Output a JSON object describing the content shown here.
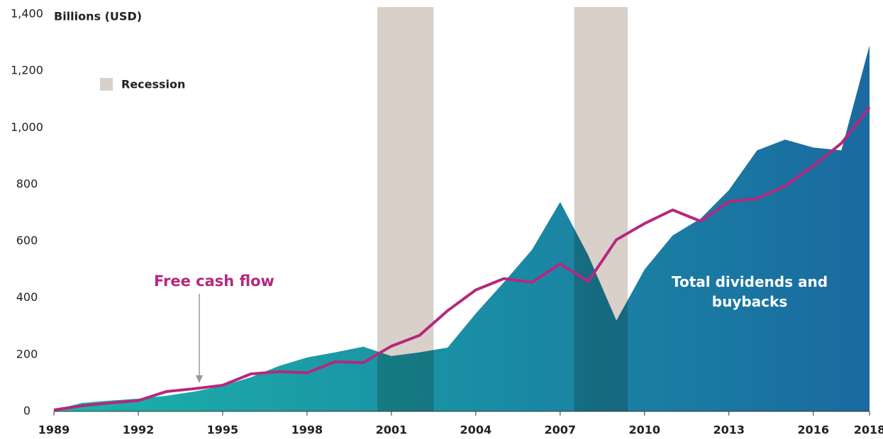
{
  "chart_data": {
    "type": "area-line",
    "y_axis_label": "Billions (USD)",
    "x": [
      1989,
      1990,
      1991,
      1992,
      1993,
      1994,
      1995,
      1996,
      1997,
      1998,
      1999,
      2000,
      2001,
      2002,
      2003,
      2004,
      2005,
      2006,
      2007,
      2008,
      2009,
      2010,
      2011,
      2012,
      2013,
      2014,
      2015,
      2016,
      2017,
      2018
    ],
    "series": [
      {
        "name": "Total dividends and buybacks",
        "kind": "area",
        "color": [
          "#1bb3a9",
          "#1a6aa0"
        ],
        "values": [
          5,
          30,
          38,
          45,
          55,
          70,
          90,
          120,
          160,
          190,
          208,
          228,
          195,
          208,
          225,
          345,
          455,
          570,
          738,
          550,
          320,
          500,
          620,
          680,
          780,
          920,
          958,
          930,
          920,
          1290
        ]
      },
      {
        "name": "Free cash flow",
        "kind": "line",
        "color": "#b5287e",
        "values": [
          5,
          20,
          30,
          38,
          70,
          80,
          92,
          132,
          140,
          136,
          175,
          172,
          230,
          268,
          355,
          428,
          468,
          455,
          520,
          458,
          605,
          662,
          710,
          670,
          740,
          750,
          795,
          865,
          945,
          1072
        ]
      }
    ],
    "recession_label": "Recession",
    "recession_color": "#d8d0c9",
    "recessions": [
      {
        "start": 2000.5,
        "end": 2002.5
      },
      {
        "start": 2007.5,
        "end": 2009.4
      }
    ],
    "xlim": [
      1989,
      2018
    ],
    "xticks": [
      1989,
      1992,
      1995,
      1998,
      2001,
      2004,
      2007,
      2010,
      2013,
      2016,
      2018
    ],
    "ylim": [
      0,
      1400
    ],
    "yticks": [
      0,
      200,
      400,
      600,
      800,
      {
        "value": 1000,
        "label": "1,000"
      },
      {
        "value": 1200,
        "label": "1,200"
      },
      {
        "value": 1400,
        "label": "1,400"
      }
    ]
  }
}
